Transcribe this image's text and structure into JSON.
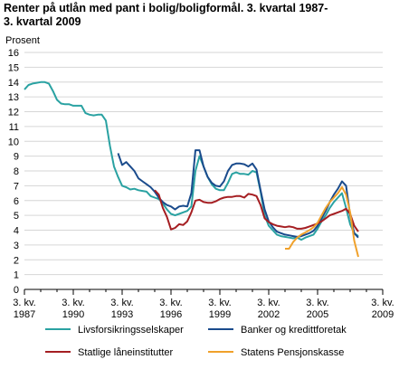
{
  "chart_data": {
    "type": "line",
    "title": "Renter på utlån med pant i bolig/boligformål. 3. kvartal 1987-\n3. kvartal 2009",
    "ylabel": "Prosent",
    "xlabel": "",
    "ylim": [
      0,
      16
    ],
    "xlim": [
      1987.5,
      2009.5
    ],
    "yticks": [
      "0",
      "1",
      "2",
      "3",
      "4",
      "5",
      "6",
      "7",
      "8",
      "9",
      "10",
      "11",
      "12",
      "13",
      "14",
      "15",
      "16"
    ],
    "xticks": [
      {
        "line1": "3. kv.",
        "line2": "1987",
        "x": 1987.5
      },
      {
        "line1": "3. kv.",
        "line2": "1990",
        "x": 1990.5
      },
      {
        "line1": "3. kv.",
        "line2": "1993",
        "x": 1993.5
      },
      {
        "line1": "3. kv.",
        "line2": "1996",
        "x": 1996.5
      },
      {
        "line1": "3. kv.",
        "line2": "1999",
        "x": 1999.5
      },
      {
        "line1": "3. kv.",
        "line2": "2002",
        "x": 2002.5
      },
      {
        "line1": "3. kv.",
        "line2": "2005",
        "x": 2005.5
      },
      {
        "line1": "3. kv.",
        "line2": "2009",
        "x": 2009.5
      }
    ],
    "grid": true,
    "legend_position": "bottom",
    "series": [
      {
        "name": "Livsforsikringsselskaper",
        "color": "#2aa2a2",
        "points": [
          [
            1987.5,
            13.5
          ],
          [
            1987.75,
            13.8
          ],
          [
            1988.0,
            13.9
          ],
          [
            1988.25,
            13.95
          ],
          [
            1988.5,
            14.0
          ],
          [
            1988.75,
            14.0
          ],
          [
            1989.0,
            13.9
          ],
          [
            1989.25,
            13.4
          ],
          [
            1989.5,
            12.8
          ],
          [
            1989.75,
            12.55
          ],
          [
            1990.0,
            12.5
          ],
          [
            1990.25,
            12.5
          ],
          [
            1990.5,
            12.4
          ],
          [
            1990.75,
            12.4
          ],
          [
            1991.0,
            12.4
          ],
          [
            1991.25,
            11.9
          ],
          [
            1991.5,
            11.8
          ],
          [
            1991.75,
            11.75
          ],
          [
            1992.0,
            11.8
          ],
          [
            1992.25,
            11.8
          ],
          [
            1992.5,
            11.4
          ],
          [
            1992.75,
            9.7
          ],
          [
            1993.0,
            8.3
          ],
          [
            1993.25,
            7.6
          ],
          [
            1993.5,
            7.0
          ],
          [
            1993.75,
            6.9
          ],
          [
            1994.0,
            6.75
          ],
          [
            1994.25,
            6.8
          ],
          [
            1994.5,
            6.7
          ],
          [
            1994.75,
            6.65
          ],
          [
            1995.0,
            6.6
          ],
          [
            1995.25,
            6.3
          ],
          [
            1995.5,
            6.2
          ],
          [
            1995.75,
            6.1
          ],
          [
            1996.0,
            5.8
          ],
          [
            1996.25,
            5.4
          ],
          [
            1996.5,
            5.1
          ],
          [
            1996.75,
            5.0
          ],
          [
            1997.0,
            5.1
          ],
          [
            1997.25,
            5.2
          ],
          [
            1997.5,
            5.3
          ],
          [
            1997.75,
            5.6
          ],
          [
            1998.0,
            8.0
          ],
          [
            1998.25,
            9.0
          ],
          [
            1998.5,
            8.3
          ],
          [
            1998.75,
            7.6
          ],
          [
            1999.0,
            7.1
          ],
          [
            1999.25,
            6.8
          ],
          [
            1999.5,
            6.7
          ],
          [
            1999.75,
            6.7
          ],
          [
            2000.0,
            7.2
          ],
          [
            2000.25,
            7.8
          ],
          [
            2000.5,
            7.9
          ],
          [
            2000.75,
            7.8
          ],
          [
            2001.0,
            7.8
          ],
          [
            2001.25,
            7.75
          ],
          [
            2001.5,
            8.0
          ],
          [
            2001.75,
            7.9
          ],
          [
            2002.0,
            6.6
          ],
          [
            2002.25,
            5.0
          ],
          [
            2002.5,
            4.3
          ],
          [
            2002.75,
            4.0
          ],
          [
            2003.0,
            3.7
          ],
          [
            2003.25,
            3.6
          ],
          [
            2003.5,
            3.55
          ],
          [
            2003.75,
            3.5
          ],
          [
            2004.0,
            3.45
          ],
          [
            2004.25,
            3.5
          ],
          [
            2004.5,
            3.35
          ],
          [
            2004.75,
            3.5
          ],
          [
            2005.0,
            3.6
          ],
          [
            2005.25,
            3.7
          ],
          [
            2005.5,
            4.1
          ],
          [
            2005.75,
            4.6
          ],
          [
            2006.0,
            5.0
          ],
          [
            2006.25,
            5.5
          ],
          [
            2006.5,
            5.9
          ],
          [
            2006.75,
            6.2
          ],
          [
            2007.0,
            6.5
          ],
          [
            2007.25,
            5.5
          ],
          [
            2007.5,
            4.4
          ],
          [
            2007.75,
            3.8
          ],
          [
            2008.0,
            3.6
          ]
        ]
      },
      {
        "name": "Banker og kredittforetak",
        "color": "#1a4b8c",
        "points": [
          [
            1993.25,
            9.2
          ],
          [
            1993.5,
            8.4
          ],
          [
            1993.75,
            8.6
          ],
          [
            1994.0,
            8.3
          ],
          [
            1994.25,
            8.0
          ],
          [
            1994.5,
            7.5
          ],
          [
            1994.75,
            7.3
          ],
          [
            1995.0,
            7.1
          ],
          [
            1995.25,
            6.9
          ],
          [
            1995.5,
            6.6
          ],
          [
            1995.75,
            6.2
          ],
          [
            1996.0,
            5.9
          ],
          [
            1996.25,
            5.7
          ],
          [
            1996.5,
            5.6
          ],
          [
            1996.75,
            5.4
          ],
          [
            1997.0,
            5.6
          ],
          [
            1997.25,
            5.65
          ],
          [
            1997.5,
            5.6
          ],
          [
            1997.75,
            6.5
          ],
          [
            1998.0,
            9.4
          ],
          [
            1998.25,
            9.4
          ],
          [
            1998.5,
            8.3
          ],
          [
            1998.75,
            7.6
          ],
          [
            1999.0,
            7.2
          ],
          [
            1999.25,
            7.0
          ],
          [
            1999.5,
            6.95
          ],
          [
            1999.75,
            7.3
          ],
          [
            2000.0,
            8.0
          ],
          [
            2000.25,
            8.4
          ],
          [
            2000.5,
            8.5
          ],
          [
            2000.75,
            8.5
          ],
          [
            2001.0,
            8.45
          ],
          [
            2001.25,
            8.3
          ],
          [
            2001.5,
            8.5
          ],
          [
            2001.75,
            8.1
          ],
          [
            2002.0,
            6.7
          ],
          [
            2002.25,
            5.4
          ],
          [
            2002.5,
            4.6
          ],
          [
            2002.75,
            4.2
          ],
          [
            2003.0,
            3.9
          ],
          [
            2003.25,
            3.8
          ],
          [
            2003.5,
            3.7
          ],
          [
            2003.75,
            3.65
          ],
          [
            2004.0,
            3.6
          ],
          [
            2004.25,
            3.55
          ],
          [
            2004.5,
            3.6
          ],
          [
            2004.75,
            3.7
          ],
          [
            2005.0,
            3.8
          ],
          [
            2005.25,
            3.95
          ],
          [
            2005.5,
            4.3
          ],
          [
            2005.75,
            4.8
          ],
          [
            2006.0,
            5.3
          ],
          [
            2006.25,
            5.9
          ],
          [
            2006.5,
            6.4
          ],
          [
            2006.75,
            6.8
          ],
          [
            2007.0,
            7.3
          ],
          [
            2007.25,
            7.0
          ],
          [
            2007.5,
            5.0
          ],
          [
            2007.75,
            3.8
          ],
          [
            2008.0,
            3.5
          ]
        ]
      },
      {
        "name": "Statlige låneinstitutter",
        "color": "#a51e22",
        "points": [
          [
            1995.5,
            6.7
          ],
          [
            1995.75,
            6.4
          ],
          [
            1996.0,
            5.5
          ],
          [
            1996.25,
            4.9
          ],
          [
            1996.5,
            4.05
          ],
          [
            1996.75,
            4.15
          ],
          [
            1997.0,
            4.4
          ],
          [
            1997.25,
            4.35
          ],
          [
            1997.5,
            4.6
          ],
          [
            1997.75,
            5.2
          ],
          [
            1998.0,
            6.0
          ],
          [
            1998.25,
            6.05
          ],
          [
            1998.5,
            5.9
          ],
          [
            1998.75,
            5.85
          ],
          [
            1999.0,
            5.85
          ],
          [
            1999.25,
            5.95
          ],
          [
            1999.5,
            6.1
          ],
          [
            1999.75,
            6.2
          ],
          [
            2000.0,
            6.25
          ],
          [
            2000.25,
            6.25
          ],
          [
            2000.5,
            6.3
          ],
          [
            2000.75,
            6.3
          ],
          [
            2001.0,
            6.2
          ],
          [
            2001.25,
            6.45
          ],
          [
            2001.5,
            6.4
          ],
          [
            2001.75,
            6.3
          ],
          [
            2002.0,
            5.7
          ],
          [
            2002.25,
            4.8
          ],
          [
            2002.5,
            4.55
          ],
          [
            2002.75,
            4.4
          ],
          [
            2003.0,
            4.3
          ],
          [
            2003.25,
            4.25
          ],
          [
            2003.5,
            4.2
          ],
          [
            2003.75,
            4.25
          ],
          [
            2004.0,
            4.2
          ],
          [
            2004.25,
            4.1
          ],
          [
            2004.5,
            4.1
          ],
          [
            2004.75,
            4.15
          ],
          [
            2005.0,
            4.25
          ],
          [
            2005.25,
            4.35
          ],
          [
            2005.5,
            4.45
          ],
          [
            2005.75,
            4.6
          ],
          [
            2006.0,
            4.8
          ],
          [
            2006.25,
            5.0
          ],
          [
            2006.5,
            5.1
          ],
          [
            2006.75,
            5.2
          ],
          [
            2007.0,
            5.3
          ],
          [
            2007.25,
            5.45
          ],
          [
            2007.5,
            5.1
          ],
          [
            2007.75,
            4.3
          ],
          [
            2008.0,
            3.9
          ]
        ]
      },
      {
        "name": "Statens Pensjonskasse",
        "color": "#f0a12b",
        "points": [
          [
            2003.5,
            2.75
          ],
          [
            2003.75,
            2.75
          ],
          [
            2004.0,
            3.2
          ],
          [
            2004.25,
            3.5
          ],
          [
            2004.5,
            3.7
          ],
          [
            2004.75,
            3.85
          ],
          [
            2005.0,
            4.0
          ],
          [
            2005.25,
            4.2
          ],
          [
            2005.5,
            4.5
          ],
          [
            2005.75,
            5.0
          ],
          [
            2006.0,
            5.5
          ],
          [
            2006.25,
            5.9
          ],
          [
            2006.5,
            6.2
          ],
          [
            2006.75,
            6.5
          ],
          [
            2007.0,
            6.9
          ],
          [
            2007.25,
            6.4
          ],
          [
            2007.5,
            5.2
          ],
          [
            2007.75,
            3.3
          ],
          [
            2008.0,
            2.2
          ]
        ]
      }
    ]
  }
}
